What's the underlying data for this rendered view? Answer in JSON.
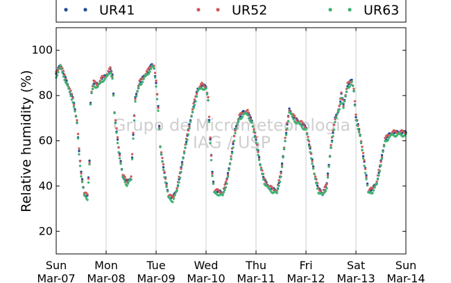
{
  "chart_data": {
    "type": "scatter",
    "title": "",
    "xlabel": "",
    "ylabel": "Relative humidity (%)",
    "ylim": [
      10,
      110
    ],
    "xlim": [
      "2010-03-07 00:00",
      "2010-03-14 00:00"
    ],
    "yticks": [
      20,
      40,
      60,
      80,
      100
    ],
    "xticks": [
      {
        "day": "Sun",
        "date": "Mar-07"
      },
      {
        "day": "Mon",
        "date": "Mar-08"
      },
      {
        "day": "Tue",
        "date": "Mar-09"
      },
      {
        "day": "Wed",
        "date": "Mar-10"
      },
      {
        "day": "Thu",
        "date": "Mar-11"
      },
      {
        "day": "Fri",
        "date": "Mar-12"
      },
      {
        "day": "Sat",
        "date": "Mar-13"
      },
      {
        "day": "Sun",
        "date": "Mar-14"
      }
    ],
    "grid": "vertical",
    "legend": "top",
    "watermark": [
      "Grupo de Micrometeorologia",
      "IAG / USP"
    ],
    "x_unit": "hours since 2010-03-07 00:00",
    "series": [
      {
        "name": "UR41",
        "color": "#1f4e9a",
        "offset": 0.6
      },
      {
        "name": "UR52",
        "color": "#d05a5a",
        "offset": 0.9
      },
      {
        "name": "UR63",
        "color": "#3cb371",
        "offset": -0.4
      }
    ],
    "base_curve": [
      [
        0,
        89
      ],
      [
        2,
        93
      ],
      [
        4,
        88
      ],
      [
        6,
        83
      ],
      [
        8,
        78
      ],
      [
        10,
        68
      ],
      [
        11,
        55
      ],
      [
        12,
        45
      ],
      [
        13.5,
        36
      ],
      [
        15,
        35
      ],
      [
        16,
        50
      ],
      [
        16.5,
        76
      ],
      [
        17,
        81
      ],
      [
        18,
        85
      ],
      [
        20,
        84
      ],
      [
        22,
        87
      ],
      [
        24,
        88
      ],
      [
        26,
        91
      ],
      [
        27,
        88
      ],
      [
        28,
        72
      ],
      [
        30,
        56
      ],
      [
        32,
        44
      ],
      [
        34,
        41
      ],
      [
        35,
        42
      ],
      [
        36,
        43
      ],
      [
        37,
        62
      ],
      [
        38,
        78
      ],
      [
        40,
        85
      ],
      [
        44,
        90
      ],
      [
        46,
        93
      ],
      [
        47,
        92
      ],
      [
        48,
        85
      ],
      [
        49,
        74
      ],
      [
        50,
        57
      ],
      [
        52,
        45
      ],
      [
        54,
        35
      ],
      [
        56,
        34
      ],
      [
        58,
        38
      ],
      [
        60,
        47
      ],
      [
        62,
        57
      ],
      [
        64,
        66
      ],
      [
        66,
        75
      ],
      [
        68,
        82
      ],
      [
        70,
        84
      ],
      [
        72,
        83
      ],
      [
        73,
        78
      ],
      [
        74,
        60
      ],
      [
        75,
        45
      ],
      [
        76,
        37
      ],
      [
        78,
        37
      ],
      [
        80,
        36
      ],
      [
        82,
        42
      ],
      [
        84,
        52
      ],
      [
        86,
        64
      ],
      [
        88,
        70
      ],
      [
        90,
        72
      ],
      [
        92,
        72
      ],
      [
        94,
        68
      ],
      [
        96,
        60
      ],
      [
        98,
        49
      ],
      [
        100,
        42
      ],
      [
        102,
        39
      ],
      [
        104,
        38
      ],
      [
        106,
        37
      ],
      [
        108,
        45
      ],
      [
        110,
        60
      ],
      [
        112,
        73
      ],
      [
        114,
        70
      ],
      [
        116,
        68
      ],
      [
        118,
        67
      ],
      [
        120,
        65
      ],
      [
        122,
        56
      ],
      [
        124,
        45
      ],
      [
        126,
        38
      ],
      [
        128,
        36
      ],
      [
        130,
        40
      ],
      [
        132,
        57
      ],
      [
        134,
        69
      ],
      [
        136,
        74
      ],
      [
        137,
        80
      ],
      [
        138,
        75
      ],
      [
        140,
        84
      ],
      [
        142,
        86
      ],
      [
        143,
        82
      ],
      [
        144,
        70
      ],
      [
        146,
        62
      ],
      [
        148,
        50
      ],
      [
        150,
        37
      ],
      [
        152,
        38
      ],
      [
        154,
        41
      ],
      [
        156,
        50
      ],
      [
        158,
        60
      ],
      [
        160,
        62
      ],
      [
        162,
        63
      ],
      [
        168,
        63
      ]
    ]
  }
}
